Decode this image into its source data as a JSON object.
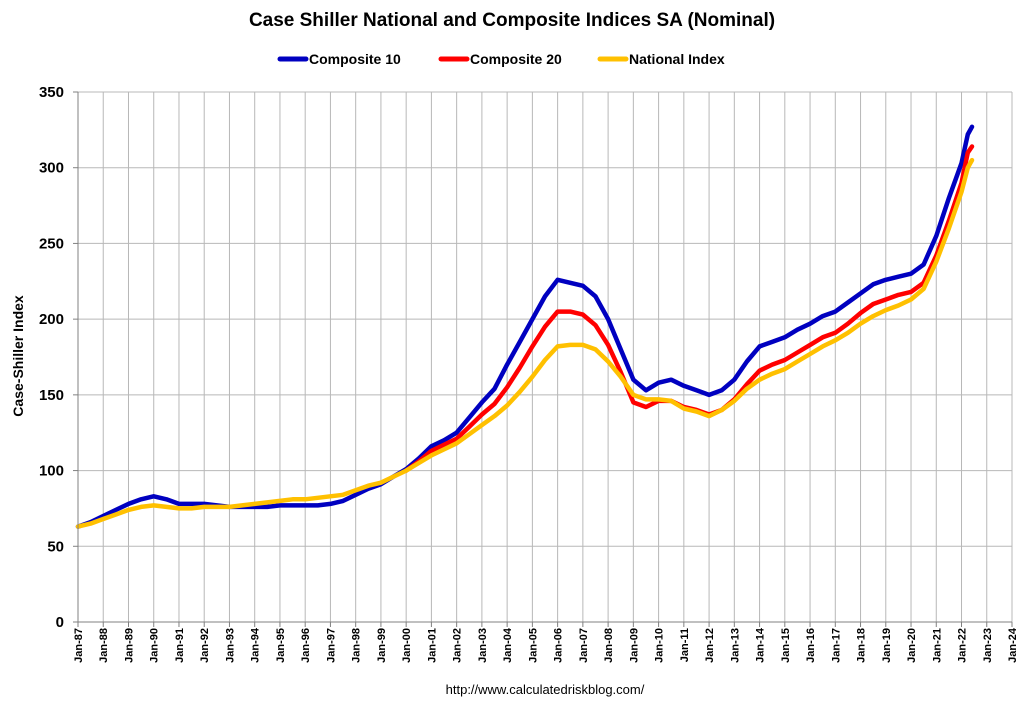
{
  "chart_data": {
    "type": "line",
    "title": "Case Shiller National and Composite Indices SA (Nominal)",
    "xlabel": "",
    "ylabel": "Case-Shiller Index",
    "source": "http://www.calculatedriskblog.com/",
    "ylim": [
      0,
      350
    ],
    "yticks": [
      0,
      50,
      100,
      150,
      200,
      250,
      300,
      350
    ],
    "xlim": [
      "Jan-87",
      "Jan-24"
    ],
    "xticks": [
      "Jan-87",
      "Jan-88",
      "Jan-89",
      "Jan-90",
      "Jan-91",
      "Jan-92",
      "Jan-93",
      "Jan-94",
      "Jan-95",
      "Jan-96",
      "Jan-97",
      "Jan-98",
      "Jan-99",
      "Jan-00",
      "Jan-01",
      "Jan-02",
      "Jan-03",
      "Jan-04",
      "Jan-05",
      "Jan-06",
      "Jan-07",
      "Jan-08",
      "Jan-09",
      "Jan-10",
      "Jan-11",
      "Jan-12",
      "Jan-13",
      "Jan-14",
      "Jan-15",
      "Jan-16",
      "Jan-17",
      "Jan-18",
      "Jan-19",
      "Jan-20",
      "Jan-21",
      "Jan-22",
      "Jan-23",
      "Jan-24"
    ],
    "grid": true,
    "legend_position": "top",
    "series": [
      {
        "name": "Composite 10",
        "color": "#0000C0",
        "points": [
          [
            "Jan-87",
            63
          ],
          [
            "Jul-87",
            66
          ],
          [
            "Jan-88",
            70
          ],
          [
            "Jul-88",
            74
          ],
          [
            "Jan-89",
            78
          ],
          [
            "Jul-89",
            81
          ],
          [
            "Jan-90",
            83
          ],
          [
            "Jul-90",
            81
          ],
          [
            "Jan-91",
            78
          ],
          [
            "Jul-91",
            78
          ],
          [
            "Jan-92",
            78
          ],
          [
            "Jul-92",
            77
          ],
          [
            "Jan-93",
            76
          ],
          [
            "Jul-93",
            76
          ],
          [
            "Jan-94",
            76
          ],
          [
            "Jul-94",
            76
          ],
          [
            "Jan-95",
            77
          ],
          [
            "Jul-95",
            77
          ],
          [
            "Jan-96",
            77
          ],
          [
            "Jul-96",
            77
          ],
          [
            "Jan-97",
            78
          ],
          [
            "Jul-97",
            80
          ],
          [
            "Jan-98",
            84
          ],
          [
            "Jul-98",
            88
          ],
          [
            "Jan-99",
            91
          ],
          [
            "Jul-99",
            96
          ],
          [
            "Jan-00",
            101
          ],
          [
            "Jul-00",
            108
          ],
          [
            "Jan-01",
            116
          ],
          [
            "Jul-01",
            120
          ],
          [
            "Jan-02",
            125
          ],
          [
            "Jul-02",
            135
          ],
          [
            "Jan-03",
            145
          ],
          [
            "Jul-03",
            154
          ],
          [
            "Jan-04",
            170
          ],
          [
            "Jul-04",
            185
          ],
          [
            "Jan-05",
            200
          ],
          [
            "Jul-05",
            215
          ],
          [
            "Jan-06",
            226
          ],
          [
            "Jul-06",
            224
          ],
          [
            "Jan-07",
            222
          ],
          [
            "Jul-07",
            215
          ],
          [
            "Jan-08",
            200
          ],
          [
            "Jul-08",
            180
          ],
          [
            "Jan-09",
            160
          ],
          [
            "Jul-09",
            153
          ],
          [
            "Jan-10",
            158
          ],
          [
            "Jul-10",
            160
          ],
          [
            "Jan-11",
            156
          ],
          [
            "Jul-11",
            153
          ],
          [
            "Jan-12",
            150
          ],
          [
            "Jul-12",
            153
          ],
          [
            "Jan-13",
            160
          ],
          [
            "Jul-13",
            172
          ],
          [
            "Jan-14",
            182
          ],
          [
            "Jul-14",
            185
          ],
          [
            "Jan-15",
            188
          ],
          [
            "Jul-15",
            193
          ],
          [
            "Jan-16",
            197
          ],
          [
            "Jul-16",
            202
          ],
          [
            "Jan-17",
            205
          ],
          [
            "Jul-17",
            211
          ],
          [
            "Jan-18",
            217
          ],
          [
            "Jul-18",
            223
          ],
          [
            "Jan-19",
            226
          ],
          [
            "Jul-19",
            228
          ],
          [
            "Jan-20",
            230
          ],
          [
            "Jul-20",
            236
          ],
          [
            "Jan-21",
            255
          ],
          [
            "Jul-21",
            280
          ],
          [
            "Jan-22",
            303
          ],
          [
            "Apr-22",
            322
          ],
          [
            "Jun-22",
            327
          ]
        ]
      },
      {
        "name": "Composite 20",
        "color": "#FF0000",
        "points": [
          [
            "Jan-00",
            100
          ],
          [
            "Jul-00",
            106
          ],
          [
            "Jan-01",
            113
          ],
          [
            "Jul-01",
            117
          ],
          [
            "Jan-02",
            121
          ],
          [
            "Jul-02",
            129
          ],
          [
            "Jan-03",
            137
          ],
          [
            "Jul-03",
            144
          ],
          [
            "Jan-04",
            155
          ],
          [
            "Jul-04",
            168
          ],
          [
            "Jan-05",
            182
          ],
          [
            "Jul-05",
            195
          ],
          [
            "Jan-06",
            205
          ],
          [
            "Jul-06",
            205
          ],
          [
            "Jan-07",
            203
          ],
          [
            "Jul-07",
            196
          ],
          [
            "Jan-08",
            183
          ],
          [
            "Jul-08",
            165
          ],
          [
            "Jan-09",
            145
          ],
          [
            "Jul-09",
            142
          ],
          [
            "Jan-10",
            146
          ],
          [
            "Jul-10",
            146
          ],
          [
            "Jan-11",
            142
          ],
          [
            "Jul-11",
            140
          ],
          [
            "Jan-12",
            137
          ],
          [
            "Jul-12",
            140
          ],
          [
            "Jan-13",
            147
          ],
          [
            "Jul-13",
            157
          ],
          [
            "Jan-14",
            166
          ],
          [
            "Jul-14",
            170
          ],
          [
            "Jan-15",
            173
          ],
          [
            "Jul-15",
            178
          ],
          [
            "Jan-16",
            183
          ],
          [
            "Jul-16",
            188
          ],
          [
            "Jan-17",
            191
          ],
          [
            "Jul-17",
            197
          ],
          [
            "Jan-18",
            204
          ],
          [
            "Jul-18",
            210
          ],
          [
            "Jan-19",
            213
          ],
          [
            "Jul-19",
            216
          ],
          [
            "Jan-20",
            218
          ],
          [
            "Jul-20",
            224
          ],
          [
            "Jan-21",
            242
          ],
          [
            "Jul-21",
            265
          ],
          [
            "Jan-22",
            290
          ],
          [
            "Apr-22",
            310
          ],
          [
            "Jun-22",
            314
          ]
        ]
      },
      {
        "name": "National Index",
        "color": "#FFC000",
        "points": [
          [
            "Jan-87",
            63
          ],
          [
            "Jul-87",
            65
          ],
          [
            "Jan-88",
            68
          ],
          [
            "Jul-88",
            71
          ],
          [
            "Jan-89",
            74
          ],
          [
            "Jul-89",
            76
          ],
          [
            "Jan-90",
            77
          ],
          [
            "Jul-90",
            76
          ],
          [
            "Jan-91",
            75
          ],
          [
            "Jul-91",
            75
          ],
          [
            "Jan-92",
            76
          ],
          [
            "Jul-92",
            76
          ],
          [
            "Jan-93",
            76
          ],
          [
            "Jul-93",
            77
          ],
          [
            "Jan-94",
            78
          ],
          [
            "Jul-94",
            79
          ],
          [
            "Jan-95",
            80
          ],
          [
            "Jul-95",
            81
          ],
          [
            "Jan-96",
            81
          ],
          [
            "Jul-96",
            82
          ],
          [
            "Jan-97",
            83
          ],
          [
            "Jul-97",
            84
          ],
          [
            "Jan-98",
            87
          ],
          [
            "Jul-98",
            90
          ],
          [
            "Jan-99",
            92
          ],
          [
            "Jul-99",
            96
          ],
          [
            "Jan-00",
            100
          ],
          [
            "Jul-00",
            105
          ],
          [
            "Jan-01",
            110
          ],
          [
            "Jul-01",
            114
          ],
          [
            "Jan-02",
            118
          ],
          [
            "Jul-02",
            124
          ],
          [
            "Jan-03",
            130
          ],
          [
            "Jul-03",
            136
          ],
          [
            "Jan-04",
            143
          ],
          [
            "Jul-04",
            152
          ],
          [
            "Jan-05",
            162
          ],
          [
            "Jul-05",
            173
          ],
          [
            "Jan-06",
            182
          ],
          [
            "Jul-06",
            183
          ],
          [
            "Jan-07",
            183
          ],
          [
            "Jul-07",
            180
          ],
          [
            "Jan-08",
            172
          ],
          [
            "Jul-08",
            162
          ],
          [
            "Jan-09",
            150
          ],
          [
            "Jul-09",
            147
          ],
          [
            "Jan-10",
            147
          ],
          [
            "Jul-10",
            146
          ],
          [
            "Jan-11",
            141
          ],
          [
            "Jul-11",
            139
          ],
          [
            "Jan-12",
            136
          ],
          [
            "Jul-12",
            140
          ],
          [
            "Jan-13",
            146
          ],
          [
            "Jul-13",
            154
          ],
          [
            "Jan-14",
            160
          ],
          [
            "Jul-14",
            164
          ],
          [
            "Jan-15",
            167
          ],
          [
            "Jul-15",
            172
          ],
          [
            "Jan-16",
            177
          ],
          [
            "Jul-16",
            182
          ],
          [
            "Jan-17",
            186
          ],
          [
            "Jul-17",
            191
          ],
          [
            "Jan-18",
            197
          ],
          [
            "Jul-18",
            202
          ],
          [
            "Jan-19",
            206
          ],
          [
            "Jul-19",
            209
          ],
          [
            "Jan-20",
            213
          ],
          [
            "Jul-20",
            220
          ],
          [
            "Jan-21",
            238
          ],
          [
            "Jul-21",
            260
          ],
          [
            "Jan-22",
            284
          ],
          [
            "Apr-22",
            300
          ],
          [
            "Jun-22",
            305
          ]
        ]
      }
    ]
  }
}
